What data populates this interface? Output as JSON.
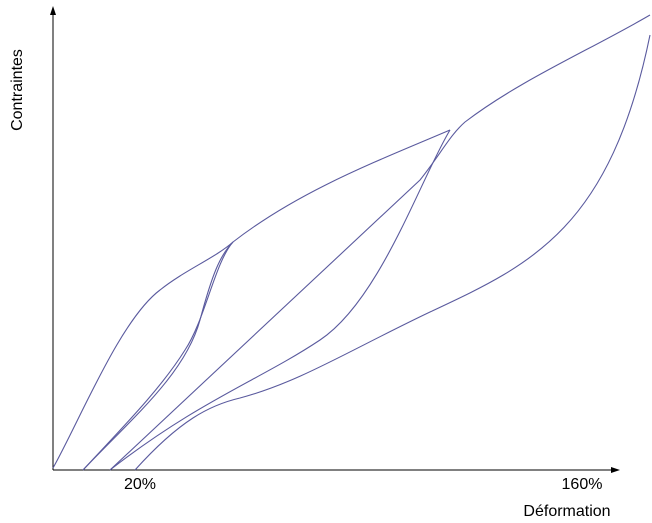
{
  "axes": {
    "y_label": "Contraintes",
    "x_label": "Déformation",
    "x_tick_labels": [
      "20%",
      "160%"
    ]
  }
}
